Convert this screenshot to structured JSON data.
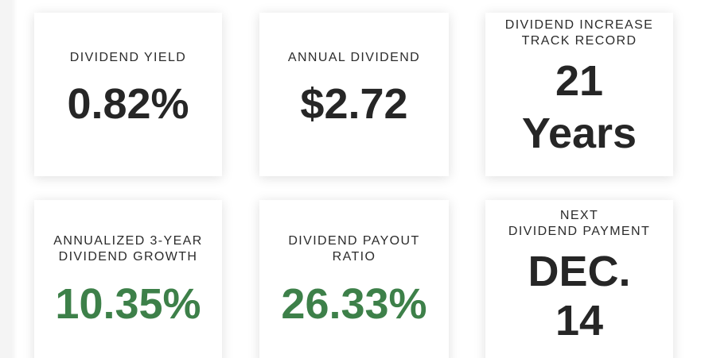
{
  "cards": [
    {
      "label": "DIVIDEND YIELD",
      "value": "0.82%"
    },
    {
      "label": "ANNUAL DIVIDEND",
      "value": "$2.72"
    },
    {
      "label": "DIVIDEND INCREASE\nTRACK RECORD",
      "value": "21\nYears"
    },
    {
      "label": "ANNUALIZED 3-YEAR\nDIVIDEND GROWTH",
      "value": "10.35%"
    },
    {
      "label": "DIVIDEND PAYOUT\nRATIO",
      "value": "26.33%"
    },
    {
      "label": "NEXT\nDIVIDEND PAYMENT",
      "value": "DEC.\n14"
    }
  ],
  "colors": {
    "text": "#262626",
    "positive": "#3d8049"
  }
}
